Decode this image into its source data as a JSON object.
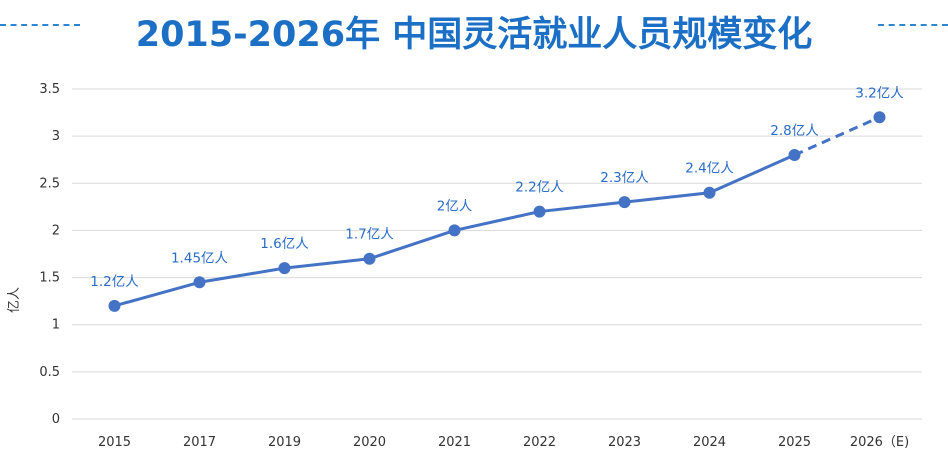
{
  "title": "2015-2026年 中国灵活就业人员规模变化",
  "chart_data": {
    "type": "line",
    "title": "2015-2026年 中国灵活就业人员规模变化",
    "ylabel": "亿人",
    "xlabel": "",
    "categories": [
      "2015",
      "2017",
      "2019",
      "2020",
      "2021",
      "2022",
      "2023",
      "2024",
      "2025",
      "2026（E)"
    ],
    "values": [
      1.2,
      1.45,
      1.6,
      1.7,
      2.0,
      2.2,
      2.3,
      2.4,
      2.8,
      3.2
    ],
    "data_labels": [
      "1.2亿人",
      "1.45亿人",
      "1.6亿人",
      "1.7亿人",
      "2亿人",
      "2.2亿人",
      "2.3亿人",
      "2.4亿人",
      "2.8亿人",
      "3.2亿人"
    ],
    "projected_from_index": 8,
    "ylim": [
      0,
      3.5
    ],
    "yticks": [
      0,
      0.5,
      1,
      1.5,
      2,
      2.5,
      3,
      3.5
    ],
    "ytick_labels": [
      "0",
      "0.5",
      "1",
      "1.5",
      "2",
      "2.5",
      "3",
      "3.5"
    ],
    "grid": true,
    "legend": "none",
    "colors": {
      "line": "#4472c4",
      "label": "#2a6dc9",
      "title": "#1b6fc4",
      "grid": "#d9d9d9"
    }
  }
}
